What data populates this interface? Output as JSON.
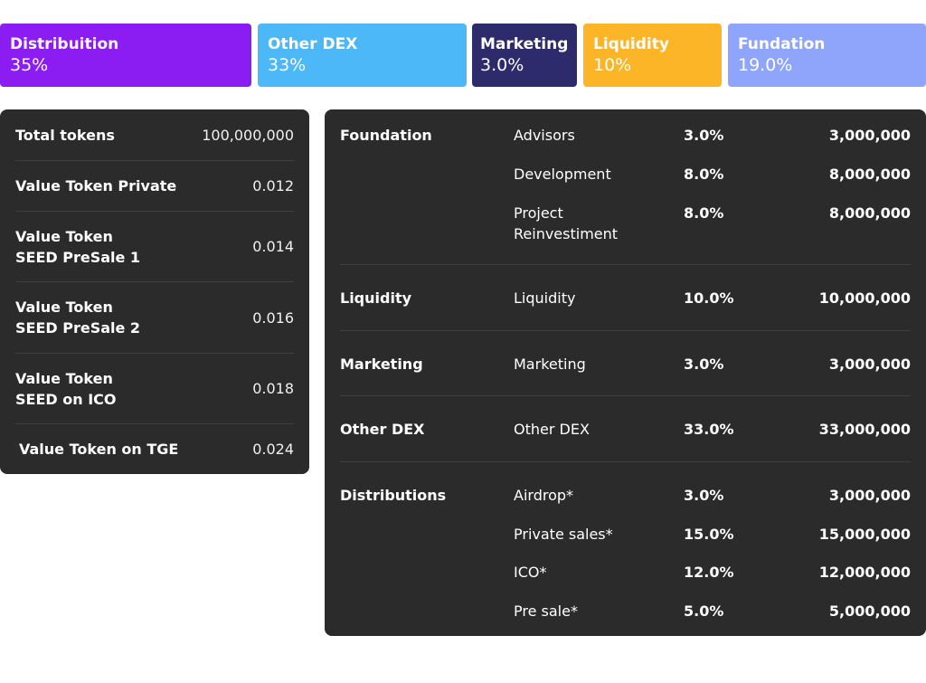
{
  "cards": {
    "distribution": {
      "title": "Distribuition",
      "value": "35%",
      "color": "#8b1cf2"
    },
    "other_dex": {
      "title": "Other DEX",
      "value": "33%",
      "color": "#4cb8f7"
    },
    "marketing": {
      "title": "Marketing",
      "value": "3.0%",
      "color": "#2d2b6b"
    },
    "liquidity": {
      "title": "Liquidity",
      "value": "10%",
      "color": "#fcb526"
    },
    "fundation": {
      "title": "Fundation",
      "value": "19.0%",
      "color": "#8ea5fb"
    }
  },
  "token_info": [
    {
      "label": "Total tokens",
      "value": "100,000,000"
    },
    {
      "label": "Value Token Private",
      "value": "0.012"
    },
    {
      "label": "Value Token\nSEED PreSale 1",
      "value": "0.014"
    },
    {
      "label": "Value Token\nSEED PreSale 2",
      "value": "0.016"
    },
    {
      "label": "Value Token\nSEED on ICO",
      "value": "0.018"
    },
    {
      "label": "Value Token on TGE",
      "value": "0.024"
    }
  ],
  "allocation": [
    {
      "group": "Foundation",
      "items": [
        {
          "name": "Advisors",
          "percent": "3.0%",
          "amount": "3,000,000"
        },
        {
          "name": "Development",
          "percent": "8.0%",
          "amount": "8,000,000"
        },
        {
          "name": "Project\nReinvestiment",
          "percent": "8.0%",
          "amount": "8,000,000"
        }
      ]
    },
    {
      "group": "Liquidity",
      "items": [
        {
          "name": "Liquidity",
          "percent": "10.0%",
          "amount": "10,000,000"
        }
      ]
    },
    {
      "group": "Marketing",
      "items": [
        {
          "name": "Marketing",
          "percent": "3.0%",
          "amount": "3,000,000"
        }
      ]
    },
    {
      "group": "Other DEX",
      "items": [
        {
          "name": "Other DEX",
          "percent": "33.0%",
          "amount": "33,000,000"
        }
      ]
    },
    {
      "group": "Distributions",
      "items": [
        {
          "name": "Airdrop*",
          "percent": "3.0%",
          "amount": "3,000,000"
        },
        {
          "name": "Private sales*",
          "percent": "15.0%",
          "amount": "15,000,000"
        },
        {
          "name": "ICO*",
          "percent": "12.0%",
          "amount": "12,000,000"
        },
        {
          "name": "Pre sale*",
          "percent": "5.0%",
          "amount": "5,000,000"
        }
      ]
    }
  ]
}
